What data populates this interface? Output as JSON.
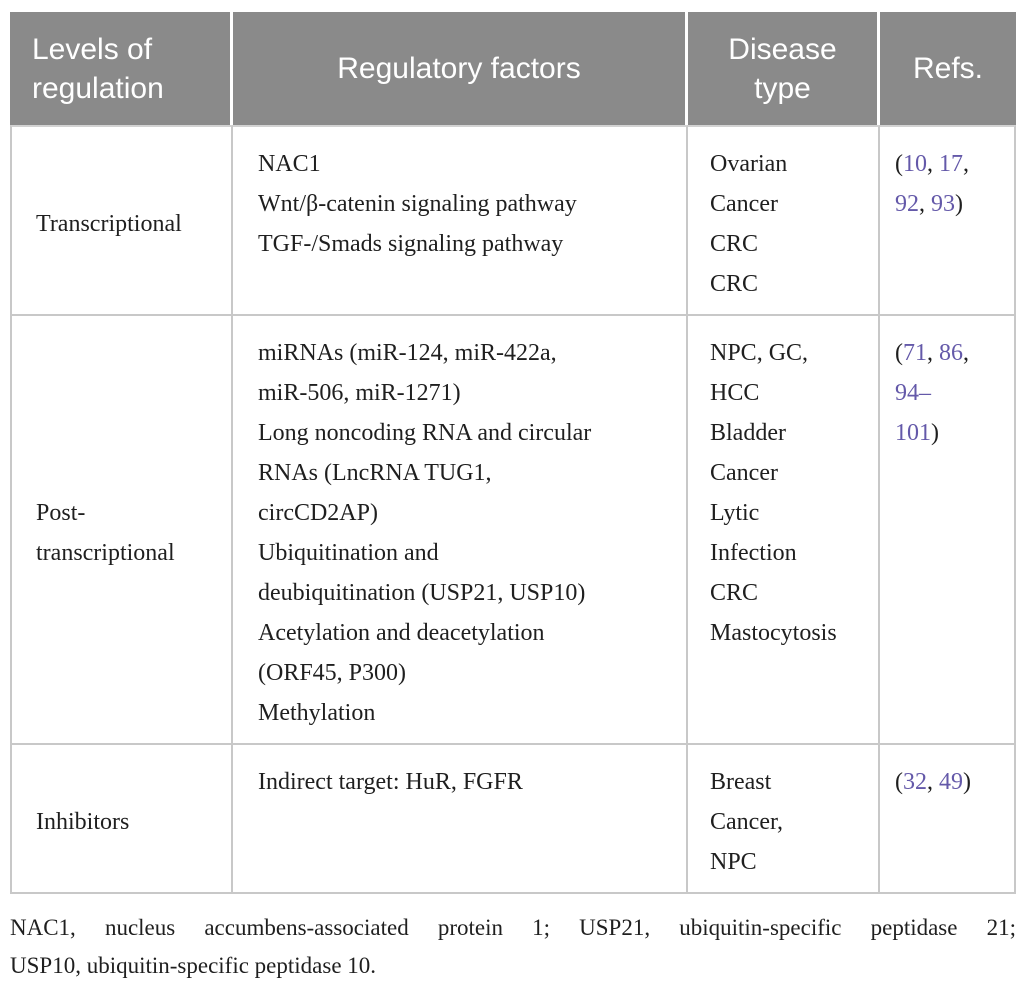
{
  "colors": {
    "header_bg": "#8a8a8a",
    "header_text": "#ffffff",
    "body_text": "#1f1f1f",
    "link": "#6459a9",
    "border": "#c8c8c8"
  },
  "table": {
    "columns": [
      {
        "key": "level",
        "label": "Levels of regulation"
      },
      {
        "key": "factors",
        "label": "Regulatory factors"
      },
      {
        "key": "disease",
        "label": "Disease type"
      },
      {
        "key": "refs",
        "label": "Refs."
      }
    ],
    "rows": [
      {
        "level": "Transcriptional",
        "factor_lines": [
          "NAC1",
          "Wnt/β-catenin signaling pathway",
          "TGF-/Smads signaling pathway"
        ],
        "disease_lines": [
          "Ovarian",
          "Cancer",
          "CRC",
          "CRC"
        ],
        "ref_lines": [
          [
            {
              "t": "(",
              "link": false
            },
            {
              "t": "10",
              "link": true
            },
            {
              "t": ", ",
              "link": false
            },
            {
              "t": "17",
              "link": true
            },
            {
              "t": ",",
              "link": false
            }
          ],
          [
            {
              "t": "92",
              "link": true
            },
            {
              "t": ", ",
              "link": false
            },
            {
              "t": "93",
              "link": true
            },
            {
              "t": ")",
              "link": false
            }
          ]
        ]
      },
      {
        "level": "Post-transcriptional",
        "factor_lines": [
          "miRNAs (miR-124, miR-422a,",
          "miR-506, miR-1271)",
          "Long noncoding RNA and circular",
          "RNAs (LncRNA TUG1,",
          "circCD2AP)",
          "Ubiquitination and",
          "deubiquitination (USP21, USP10)",
          "Acetylation and deacetylation",
          "(ORF45, P300)",
          "Methylation"
        ],
        "disease_lines": [
          "NPC, GC,",
          "HCC",
          "Bladder",
          "Cancer",
          "Lytic",
          "Infection",
          "CRC",
          "Mastocytosis"
        ],
        "ref_lines": [
          [
            {
              "t": "(",
              "link": false
            },
            {
              "t": "71",
              "link": true
            },
            {
              "t": ", ",
              "link": false
            },
            {
              "t": "86",
              "link": true
            },
            {
              "t": ",",
              "link": false
            }
          ],
          [
            {
              "t": "94–",
              "link": true
            }
          ],
          [
            {
              "t": "101",
              "link": true
            },
            {
              "t": ")",
              "link": false
            }
          ]
        ]
      },
      {
        "level": "Inhibitors",
        "factor_lines": [
          "Indirect target: HuR, FGFR"
        ],
        "disease_lines": [
          "Breast",
          "Cancer,",
          "NPC"
        ],
        "ref_lines": [
          [
            {
              "t": "(",
              "link": false
            },
            {
              "t": "32",
              "link": true
            },
            {
              "t": ", ",
              "link": false
            },
            {
              "t": "49",
              "link": true
            },
            {
              "t": ")",
              "link": false
            }
          ]
        ]
      }
    ]
  },
  "footnote": {
    "lines": [
      "NAC1, nucleus accumbens-associated protein 1; USP21, ubiquitin-specific peptidase 21;",
      "USP10, ubiquitin-specific peptidase 10."
    ]
  }
}
